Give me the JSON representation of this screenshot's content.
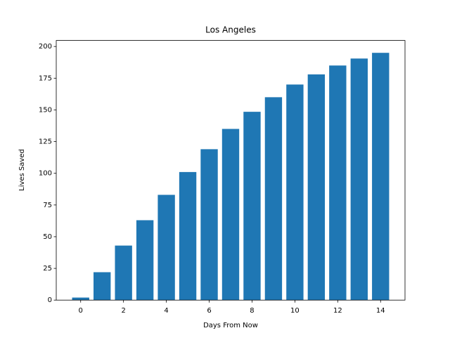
{
  "chart_data": {
    "type": "bar",
    "title": "Los Angeles",
    "x_label": "Days From Now",
    "y_label": "Lives Saved",
    "x": [
      0,
      1,
      2,
      3,
      4,
      5,
      6,
      7,
      8,
      9,
      10,
      11,
      12,
      13,
      14
    ],
    "values": [
      2,
      22,
      43,
      63,
      83,
      101,
      119,
      135,
      148.5,
      160,
      170,
      178,
      185,
      190.5,
      195
    ],
    "color": "#1f77b4",
    "xlim": [
      -1.14,
      15.14
    ],
    "xticks": [
      0,
      2,
      4,
      6,
      8,
      10,
      12,
      14
    ],
    "ylim": [
      0,
      204.75
    ],
    "yticks": [
      0,
      25,
      50,
      75,
      100,
      125,
      150,
      175,
      200
    ],
    "grid": false
  }
}
